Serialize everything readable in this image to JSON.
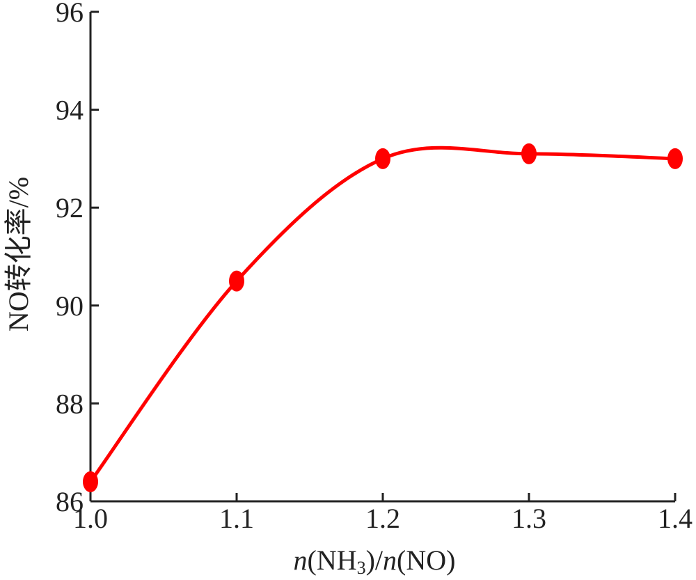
{
  "chart_data": {
    "type": "line",
    "title": "",
    "xlabel": "n(NH3)/n(NO)",
    "xlabel_parts": {
      "n1": "n",
      "open1": "(NH",
      "sub": "3",
      "mid": ")/",
      "n2": "n",
      "close": "(NO)"
    },
    "ylabel": "NO转化率/%",
    "xlim": [
      1.0,
      1.4
    ],
    "ylim": [
      86,
      96
    ],
    "x_ticks": [
      "1.0",
      "1.1",
      "1.2",
      "1.3",
      "1.4"
    ],
    "y_ticks": [
      "86",
      "88",
      "90",
      "92",
      "94",
      "96"
    ],
    "grid": false,
    "legend": "none",
    "series": [
      {
        "color": "#ff0000",
        "x": [
          1.0,
          1.1,
          1.2,
          1.3,
          1.4
        ],
        "y": [
          86.4,
          90.5,
          93.0,
          93.1,
          93.0
        ]
      }
    ]
  }
}
